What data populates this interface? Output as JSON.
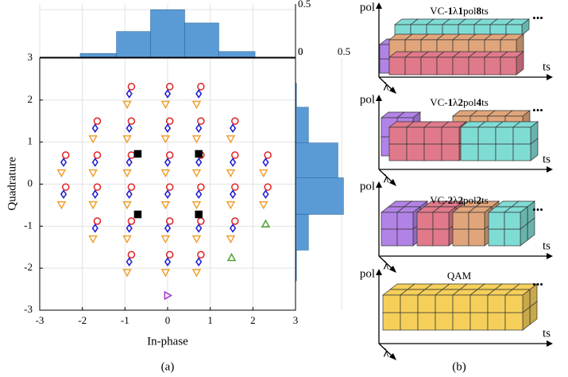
{
  "chart_data": [
    {
      "type": "scatter",
      "xlabel": "In-phase",
      "ylabel": "Quadrature",
      "xlim": [
        -3,
        3
      ],
      "ylim": [
        -3,
        3
      ],
      "xticks": [
        -3,
        -2,
        -1,
        0,
        1,
        2,
        3
      ],
      "yticks": [
        -3,
        -2,
        -1,
        0,
        1,
        2,
        3
      ],
      "grid": true,
      "series": [
        {
          "color": "#e02020",
          "marker": "circle",
          "x": [
            -0.85,
            0.05,
            0.78,
            -1.65,
            -0.85,
            0.05,
            0.78,
            1.58,
            -2.39,
            -1.65,
            -0.85,
            0.05,
            0.78,
            1.58,
            2.35,
            -2.39,
            -1.65,
            -0.85,
            0.05,
            0.78,
            1.58,
            2.35,
            -1.65,
            -0.85,
            0.05,
            0.78,
            1.58,
            -0.85,
            0.05,
            0.78
          ],
          "y": [
            2.32,
            2.32,
            2.32,
            1.5,
            1.5,
            1.5,
            1.5,
            1.5,
            0.69,
            0.69,
            0.69,
            0.69,
            0.69,
            0.69,
            0.69,
            -0.07,
            -0.07,
            -0.07,
            -0.07,
            -0.07,
            -0.07,
            -0.07,
            -0.88,
            -0.88,
            -0.88,
            -0.88,
            -0.88,
            -1.68,
            -1.68,
            -1.68
          ]
        },
        {
          "color": "#f0a030",
          "marker": "triangle-down",
          "x": [
            -0.95,
            -0.05,
            0.68,
            -1.75,
            -0.95,
            -0.05,
            0.68,
            1.48,
            -2.49,
            -1.75,
            -0.95,
            -0.05,
            0.68,
            1.48,
            2.25,
            -2.49,
            -1.75,
            -0.95,
            -0.05,
            0.68,
            1.48,
            2.25,
            -1.75,
            -0.95,
            -0.05,
            0.68,
            1.48,
            -0.95,
            -0.05,
            0.68
          ],
          "y": [
            1.9,
            1.9,
            1.9,
            1.08,
            1.08,
            1.08,
            1.08,
            1.08,
            0.27,
            0.27,
            0.27,
            0.27,
            0.27,
            0.27,
            0.27,
            -0.49,
            -0.49,
            -0.49,
            -0.49,
            -0.49,
            -0.49,
            -0.49,
            -1.3,
            -1.3,
            -1.3,
            -1.3,
            -1.3,
            -2.1,
            -2.1,
            -2.1
          ]
        },
        {
          "color": "#1a1ad0",
          "marker": "diamond",
          "x": [
            -0.9,
            0,
            0.73,
            -1.7,
            -0.9,
            0,
            0.73,
            1.53,
            -2.44,
            -1.7,
            -0.9,
            0,
            0.73,
            1.53,
            2.3,
            -2.44,
            -1.7,
            -0.9,
            0,
            0.73,
            1.53,
            2.3,
            -1.7,
            -0.9,
            0,
            0.73,
            1.53,
            -0.9,
            0,
            0.73
          ],
          "y": [
            2.15,
            2.15,
            2.15,
            1.33,
            1.33,
            1.33,
            1.33,
            1.33,
            0.52,
            0.52,
            0.52,
            0.52,
            0.52,
            0.52,
            0.52,
            -0.24,
            -0.24,
            -0.24,
            -0.24,
            -0.24,
            -0.24,
            -0.24,
            -1.05,
            -1.05,
            -1.05,
            -1.05,
            -1.05,
            -1.85,
            -1.85,
            -1.85
          ]
        },
        {
          "color": "#50a030",
          "marker": "triangle",
          "x": [
            1.5,
            2.3
          ],
          "y": [
            -1.75,
            -0.95
          ]
        },
        {
          "color": "#a030d0",
          "marker": "triangle-right",
          "x": [
            0
          ],
          "y": [
            -2.65
          ]
        },
        {
          "color": "#000000",
          "marker": "square",
          "x": [
            -0.7,
            0.73,
            -0.7,
            0.73
          ],
          "y": [
            0.72,
            0.72,
            -0.72,
            -0.72
          ]
        }
      ]
    },
    {
      "type": "histogram",
      "orientation": "vertical",
      "color": "#5b9bd5",
      "bins": [
        -2.05,
        -1.2,
        -0.4,
        0.4,
        1.2,
        2.05
      ],
      "values": [
        0.04,
        0.27,
        0.5,
        0.36,
        0.06
      ],
      "xlim": [
        -3,
        3
      ],
      "ylim": [
        0,
        0.56
      ],
      "yticks": [
        0,
        0.5
      ]
    },
    {
      "type": "histogram",
      "orientation": "horizontal",
      "color": "#5b9bd5",
      "bins": [
        -2.3,
        -1.57,
        -0.72,
        0.15,
        0.98,
        1.83,
        2.4
      ],
      "values": [
        0.01,
        0.14,
        0.52,
        0.46,
        0.14,
        0.01
      ],
      "ylim": [
        -3,
        3
      ],
      "xlim": [
        0,
        0.56
      ],
      "xticks": [
        0,
        0.5
      ]
    }
  ],
  "diagrams": [
    {
      "title_parts": [
        "VC-",
        "1",
        "λ",
        "1",
        "pol",
        "8",
        "ts"
      ]
    },
    {
      "title_parts": [
        "VC-",
        "1",
        "λ",
        "2",
        "pol",
        "4",
        "ts"
      ]
    },
    {
      "title_parts": [
        "VC-",
        "2",
        "λ",
        "2",
        "pol",
        "2",
        "ts"
      ]
    },
    {
      "title_parts": [
        "QAM"
      ]
    }
  ],
  "diagram_axes": {
    "vertical": "pol",
    "horizontal": "ts",
    "depth": "λ",
    "more": "•••"
  },
  "panel_labels": [
    "(a)",
    "(b)"
  ]
}
